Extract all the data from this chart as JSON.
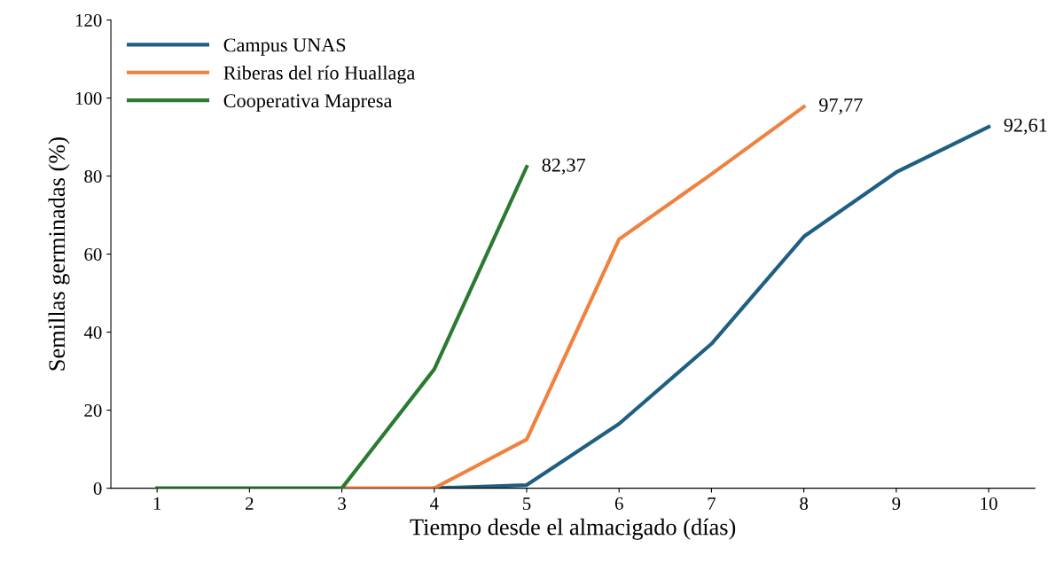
{
  "chart_data": {
    "type": "line",
    "xlabel": "Tiempo desde el almacigado (días)",
    "ylabel": "Semillas germinadas (%)",
    "categories": [
      "1",
      "2",
      "3",
      "4",
      "5",
      "6",
      "7",
      "8",
      "9",
      "10"
    ],
    "series": [
      {
        "name": "Campus UNAS",
        "color": "#1f5f82",
        "values": [
          null,
          null,
          null,
          0,
          0.8,
          16.5,
          37,
          64.5,
          81,
          92.61
        ],
        "value_labels": [
          null,
          null,
          null,
          null,
          null,
          null,
          null,
          null,
          null,
          "92,61"
        ]
      },
      {
        "name": "Riberas del río Huallaga",
        "color": "#f0813f",
        "values": [
          null,
          null,
          0,
          0,
          12.5,
          63.8,
          80.5,
          97.77,
          null,
          null
        ],
        "value_labels": [
          null,
          null,
          null,
          null,
          null,
          null,
          null,
          "97,77",
          null,
          null
        ]
      },
      {
        "name": "Cooperativa Mapresa",
        "color": "#2a7a32",
        "values": [
          0,
          0,
          0,
          30.5,
          82.37,
          null,
          null,
          null,
          null,
          null
        ],
        "value_labels": [
          null,
          null,
          null,
          null,
          "82,37",
          null,
          null,
          null,
          null,
          null
        ]
      }
    ],
    "ylim": [
      0,
      120
    ],
    "yticks": [
      0,
      20,
      40,
      60,
      80,
      100,
      120
    ],
    "grid": false,
    "legend": "top left",
    "marker": "none",
    "line_style": "solid"
  }
}
